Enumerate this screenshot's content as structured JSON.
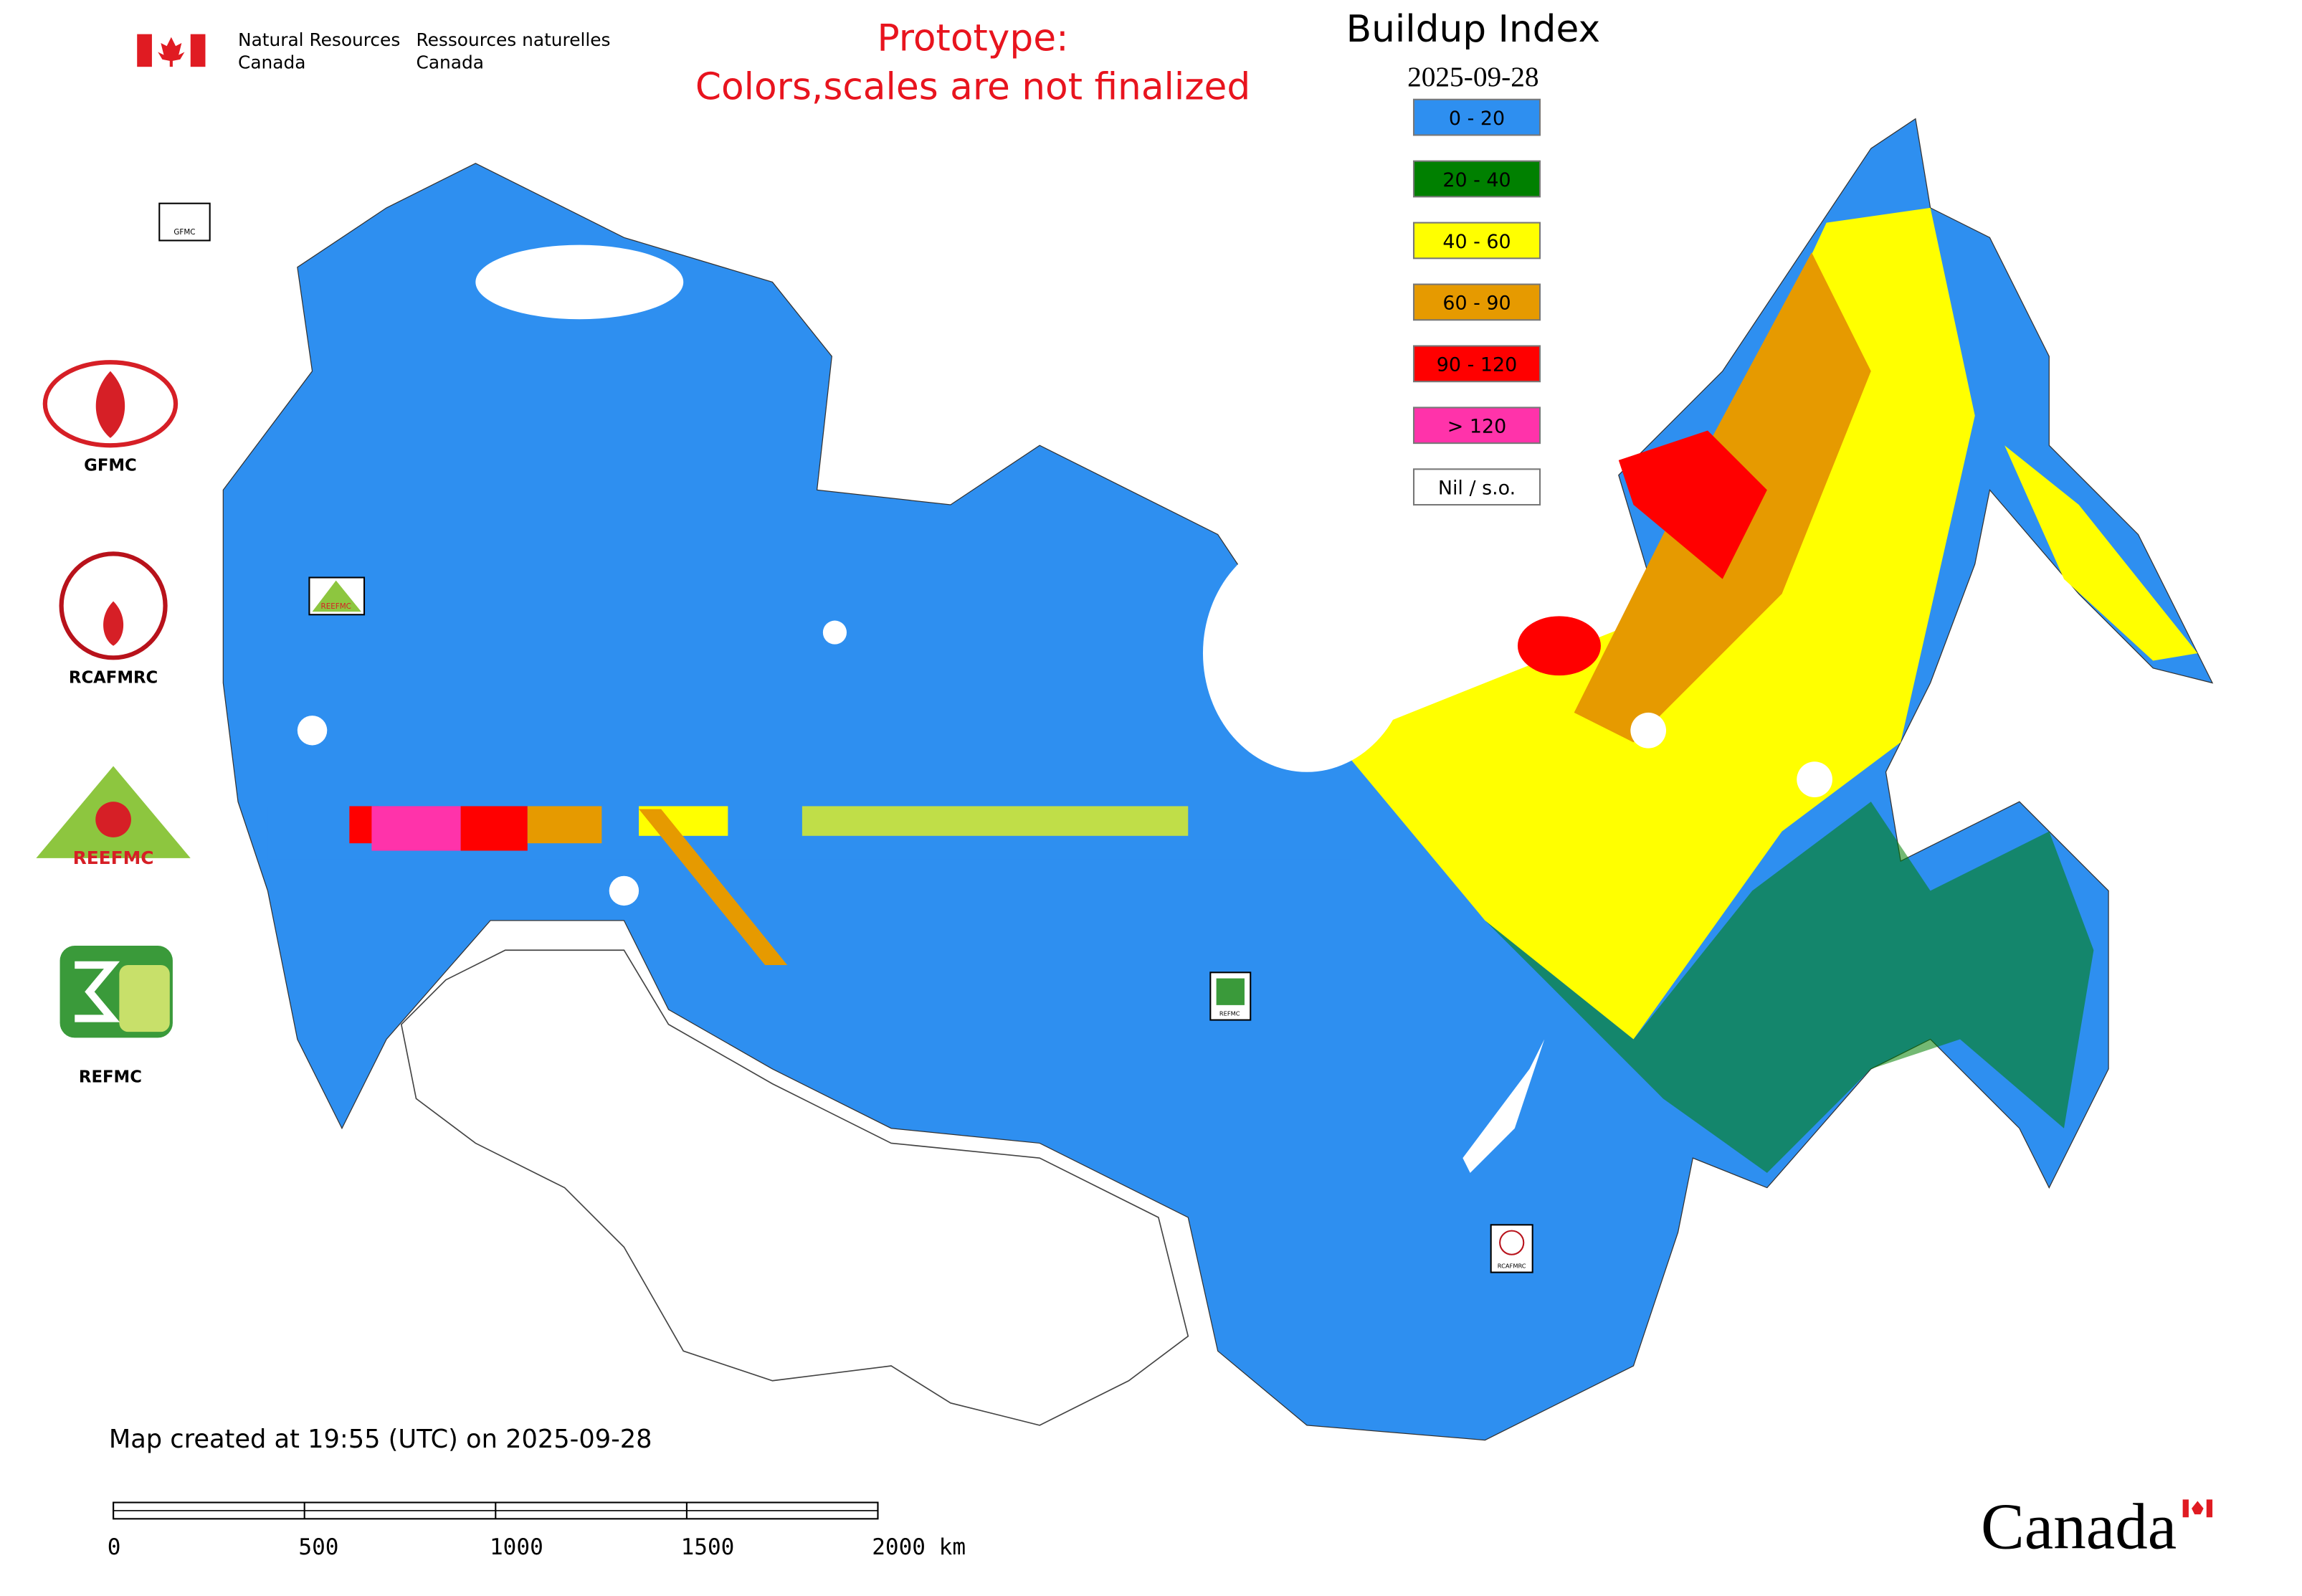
{
  "header": {
    "org_en_1": "Natural Resources",
    "org_en_2": "Canada",
    "org_fr_1": "Ressources naturelles",
    "org_fr_2": "Canada"
  },
  "notice": [
    "Prototype:",
    "Colors,scales are not finalized"
  ],
  "legend": {
    "title": "Buildup Index",
    "date": "2025-09-28",
    "items": [
      {
        "label": "0 - 20",
        "color": "#2e8ff0"
      },
      {
        "label": "20 - 40",
        "color": "#008000"
      },
      {
        "label": "40 - 60",
        "color": "#ffff00"
      },
      {
        "label": "60 - 90",
        "color": "#e69a00"
      },
      {
        "label": "90 - 120",
        "color": "#ff0000"
      },
      {
        "label": "> 120",
        "color": "#ff33aa"
      },
      {
        "label": "Nil / s.o.",
        "color": "#ffffff"
      }
    ]
  },
  "logos": [
    "GFMC",
    "RCAFMRC",
    "REEFMC",
    "REFMC"
  ],
  "map_markers": [
    "GFMC",
    "REEFMC",
    "REFMC",
    "RCAFMRC"
  ],
  "map_note": "Map created at 19:55 (UTC) on 2025-09-28",
  "scale_bar": {
    "labels": [
      "0",
      "500",
      "1000",
      "1500",
      "2000 km"
    ]
  },
  "wordmark": "Canada"
}
